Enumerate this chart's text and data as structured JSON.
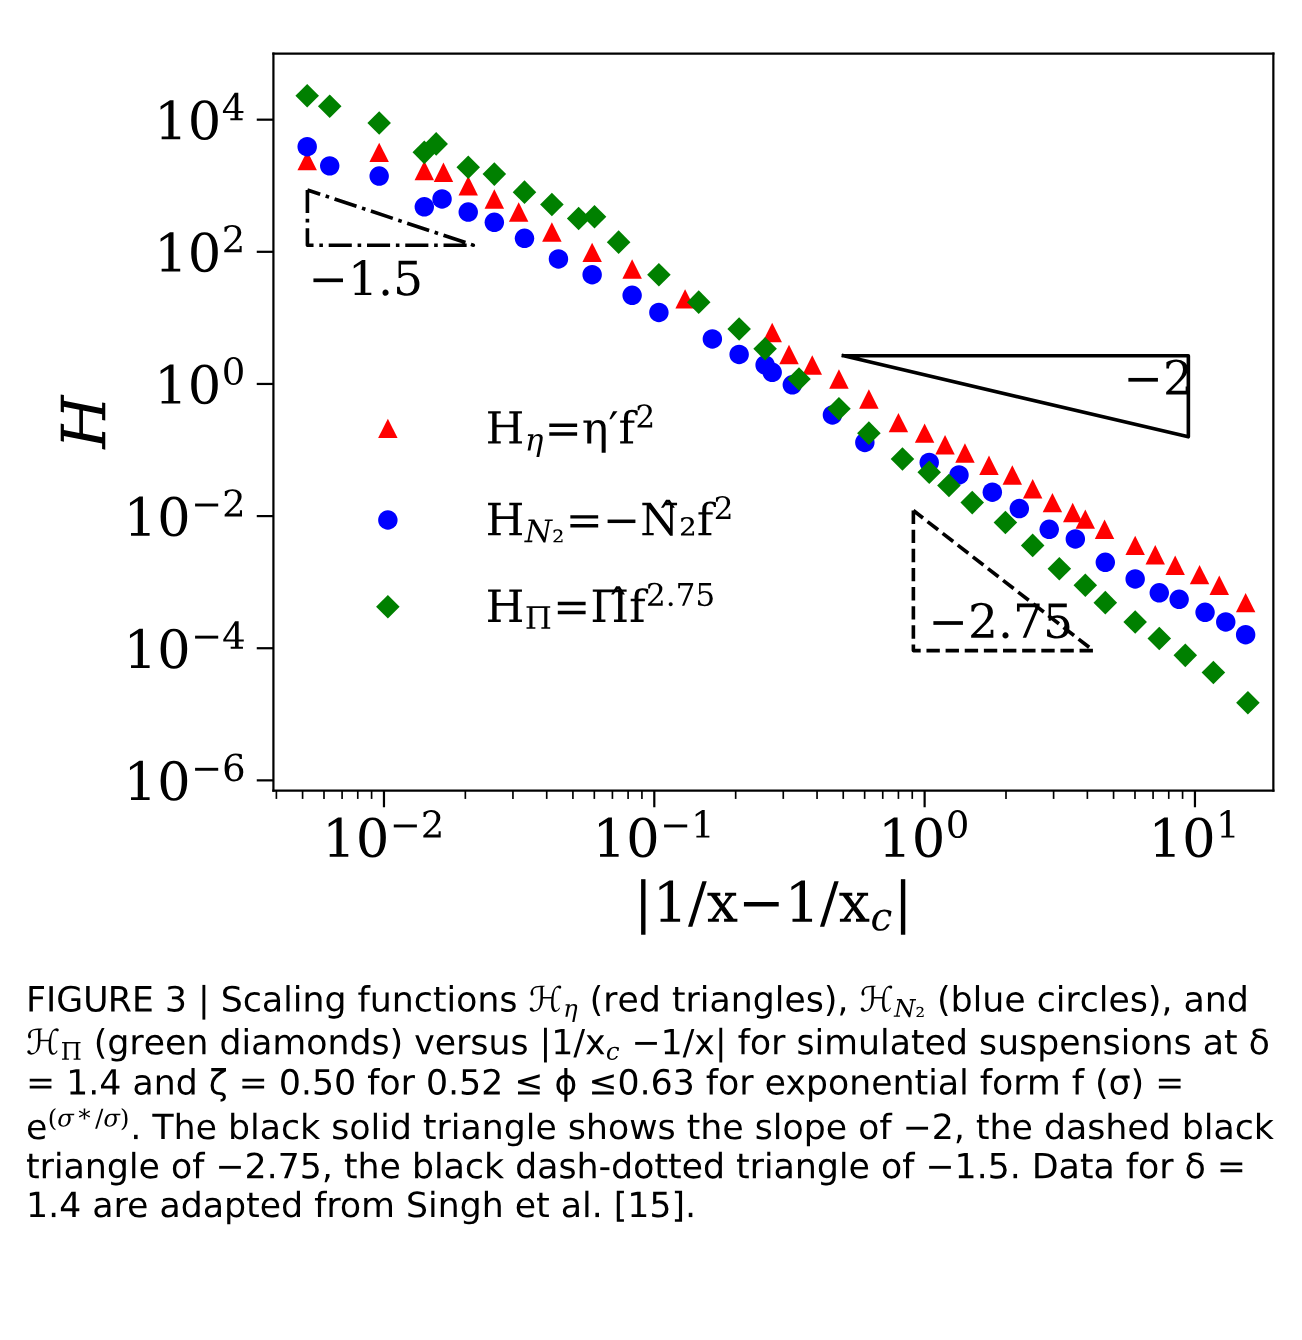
{
  "chart_data": {
    "type": "scatter",
    "xlabel": "|1/x−1/x$_{c}$|",
    "ylabel": "H",
    "log": "xy",
    "xlim": [
      0.0039,
      19.5
    ],
    "ylim": [
      7e-07,
      100000.0
    ],
    "xticks": [
      {
        "value": 0.01,
        "label": "10$^{−2}$"
      },
      {
        "value": 0.1,
        "label": "10$^{−1}$"
      },
      {
        "value": 1,
        "label": "10$^{0}$"
      },
      {
        "value": 10,
        "label": "10$^{1}$"
      }
    ],
    "yticks": [
      {
        "value": 1e-06,
        "label": "10$^{−6}$"
      },
      {
        "value": 0.0001,
        "label": "10$^{−4}$"
      },
      {
        "value": 0.01,
        "label": "10$^{−2}$"
      },
      {
        "value": 1,
        "label": "10$^{0}$"
      },
      {
        "value": 100,
        "label": "10$^{2}$"
      },
      {
        "value": 10000,
        "label": "10$^{4}$"
      }
    ],
    "grid": false,
    "legend": "left",
    "series": [
      {
        "name": "H$_{η}$=η′f$^{2}$",
        "color": "#ff0000",
        "marker": "triangle",
        "x": [
          0.0052,
          0.0063,
          0.0096,
          0.0141,
          0.0166,
          0.0205,
          0.0256,
          0.0315,
          0.0418,
          0.0589,
          0.0828,
          0.13,
          0.206,
          0.257,
          0.273,
          0.315,
          0.384,
          0.482,
          0.622,
          0.8,
          1.0,
          1.19,
          1.41,
          1.73,
          2.11,
          2.51,
          2.97,
          3.53,
          3.93,
          4.63,
          6.01,
          7.13,
          8.45,
          10.4,
          12.3,
          15.4
        ],
        "values": [
          2400,
          null,
          3200,
          1700,
          1600,
          1000,
          630,
          400,
          200,
          98,
          55,
          19.4,
          null,
          null,
          6.0,
          2.8,
          1.94,
          1.19,
          0.59,
          0.26,
          0.18,
          0.12,
          0.09,
          0.059,
          0.042,
          0.026,
          0.016,
          0.0113,
          0.009,
          0.0063,
          0.0036,
          0.0026,
          0.0018,
          0.0013,
          0.0009,
          0.00049
        ]
      },
      {
        "name": "H$_{N₂}$=−N̂₂f$^{2}$",
        "color": "#0000ff",
        "marker": "circle",
        "x": [
          0.0052,
          0.0063,
          0.0096,
          0.0141,
          0.0164,
          0.0205,
          0.0256,
          0.0331,
          0.0442,
          0.0589,
          0.0828,
          0.104,
          0.164,
          0.206,
          0.257,
          0.273,
          0.324,
          0.456,
          0.601,
          0.828,
          1.04,
          1.34,
          1.78,
          2.24,
          2.89,
          3.61,
          4.66,
          6.01,
          7.38,
          8.74,
          10.9,
          13.0,
          15.4
        ],
        "values": [
          3900,
          2000,
          1400,
          480,
          630,
          400,
          280,
          160,
          78,
          45,
          22,
          12.1,
          4.8,
          2.8,
          1.94,
          1.5,
          0.97,
          0.34,
          0.13,
          null,
          0.065,
          0.042,
          0.023,
          0.013,
          0.0063,
          0.0045,
          0.002,
          0.00112,
          0.00069,
          0.00055,
          0.00035,
          0.00025,
          0.00016
        ]
      },
      {
        "name": "H$_{Π}$=Π̂f$^{2.75}$",
        "color": "#008000",
        "marker": "diamond",
        "x": [
          0.0052,
          0.0063,
          0.0096,
          0.0141,
          0.0156,
          0.0205,
          0.0256,
          0.0331,
          0.0418,
          0.0525,
          0.0601,
          0.0738,
          0.104,
          0.146,
          0.206,
          0.257,
          0.343,
          0.482,
          0.622,
          0.828,
          1.04,
          1.23,
          1.5,
          1.99,
          2.51,
          3.15,
          3.93,
          4.66,
          6.01,
          7.38,
          9.21,
          11.7,
          15.7
        ],
        "values": [
          23000,
          16000,
          8900,
          3200,
          4300,
          1900,
          1500,
          800,
          520,
          320,
          340,
          140,
          45,
          17.3,
          6.8,
          3.4,
          1.19,
          0.42,
          0.18,
          0.073,
          0.046,
          0.029,
          0.016,
          0.008,
          0.0036,
          0.0016,
          0.0009,
          0.00049,
          0.00025,
          0.00014,
          7.8e-05,
          4.3e-05,
          1.5e-05
        ]
      }
    ],
    "annotations": [
      "−1.5",
      "−2",
      "−2.75",
      "FIGURE 3 | Scaling functions ℋ$_{η}$ (red triangles), ℋ$_{N₂}$ (blue circles), and ℋ$_{Π}$ (green diamonds) versus |1/x$_{c}$ −1/x| for simulated suspensions at δ = 1.4 and ζ = 0.50 for 0.52 ≤ ϕ ≤0.63 for exponential form f (σ) = e$^{(σ*/σ)}$. The black solid triangle shows the slope of −2, the dashed black triangle of −2.75, the black dash-dotted triangle of −1.5. Data for δ = 1.4 are adapted from Singh et al. [15]."
    ]
  }
}
